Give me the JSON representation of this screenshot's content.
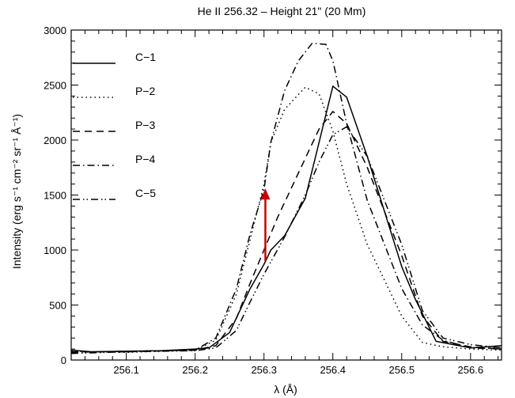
{
  "chart_data": {
    "type": "line",
    "title": "He II 256.32 – Height 21\" (20 Mm)",
    "xlabel": "λ (Å)",
    "ylabel": "Intensity (erg s⁻¹ cm⁻² sr⁻¹ Å⁻¹)",
    "xlim": [
      256.02,
      256.645
    ],
    "ylim": [
      0,
      3000
    ],
    "x_ticks": [
      "256.1",
      "256.2",
      "256.3",
      "256.4",
      "256.5",
      "256.6"
    ],
    "y_ticks": [
      "0",
      "500",
      "1000",
      "1500",
      "2000",
      "2500",
      "3000"
    ],
    "grid": false,
    "legend_position": "top-left",
    "series": [
      {
        "name": "C−1",
        "dash": "solid",
        "color": "#000000",
        "x": [
          256.02,
          256.05,
          256.1,
          256.15,
          256.2,
          256.22,
          256.25,
          256.28,
          256.3,
          256.31,
          256.33,
          256.36,
          256.4,
          256.42,
          256.45,
          256.5,
          256.52,
          256.55,
          256.6,
          256.645
        ],
        "y": [
          90,
          75,
          80,
          85,
          100,
          110,
          250,
          650,
          870,
          1000,
          1130,
          1470,
          2490,
          2390,
          1850,
          850,
          550,
          170,
          110,
          130
        ]
      },
      {
        "name": "P−2",
        "dash": "dotted",
        "color": "#000000",
        "x": [
          256.02,
          256.1,
          256.2,
          256.23,
          256.26,
          256.28,
          256.3,
          256.31,
          256.33,
          256.36,
          256.38,
          256.4,
          256.42,
          256.45,
          256.5,
          256.53,
          256.56,
          256.6,
          256.645
        ],
        "y": [
          80,
          70,
          90,
          180,
          600,
          1100,
          1600,
          1980,
          2280,
          2480,
          2420,
          2080,
          1600,
          1050,
          400,
          160,
          120,
          100,
          90
        ]
      },
      {
        "name": "P−3",
        "dash": "dashed",
        "color": "#000000",
        "x": [
          256.02,
          256.1,
          256.2,
          256.23,
          256.26,
          256.28,
          256.3,
          256.32,
          256.35,
          256.38,
          256.4,
          256.42,
          256.45,
          256.5,
          256.53,
          256.56,
          256.6,
          256.645
        ],
        "y": [
          75,
          75,
          90,
          130,
          380,
          700,
          1000,
          1300,
          1700,
          2100,
          2260,
          2150,
          1750,
          950,
          400,
          170,
          120,
          100
        ]
      },
      {
        "name": "P−4",
        "dash": "dash-dot",
        "color": "#000000",
        "x": [
          256.02,
          256.1,
          256.2,
          256.23,
          256.26,
          256.28,
          256.3,
          256.31,
          256.33,
          256.35,
          256.37,
          256.39,
          256.4,
          256.42,
          256.45,
          256.5,
          256.53,
          256.56,
          256.6,
          256.645
        ],
        "y": [
          70,
          80,
          90,
          200,
          650,
          1150,
          1550,
          1980,
          2450,
          2720,
          2880,
          2870,
          2720,
          2150,
          1450,
          650,
          320,
          180,
          110,
          100
        ]
      },
      {
        "name": "C−5",
        "dash": "dash-dot-dot",
        "color": "#000000",
        "x": [
          256.02,
          256.1,
          256.2,
          256.23,
          256.26,
          256.28,
          256.3,
          256.33,
          256.36,
          256.38,
          256.4,
          256.42,
          256.45,
          256.5,
          256.53,
          256.56,
          256.6,
          256.645
        ],
        "y": [
          60,
          75,
          85,
          110,
          270,
          530,
          780,
          1120,
          1500,
          1800,
          2050,
          2120,
          1850,
          1050,
          450,
          200,
          140,
          110
        ]
      }
    ],
    "annotations": [
      {
        "type": "arrow",
        "color": "#cc0000",
        "x": 256.302,
        "y_start": 900,
        "y_end": 1560
      }
    ]
  }
}
